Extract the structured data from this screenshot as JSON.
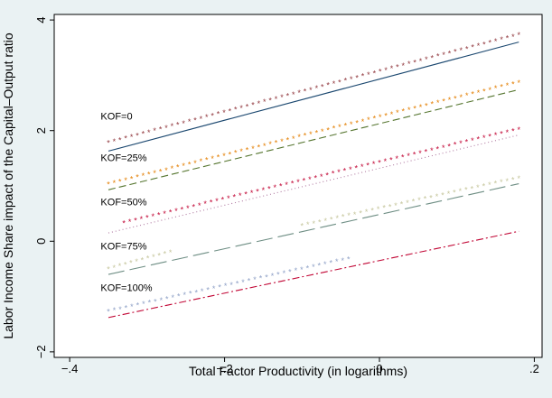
{
  "chart_data": {
    "type": "line",
    "title": "",
    "xlabel": "Total Factor Productivity (in logarithms)",
    "ylabel": "Labor Income Share impact of the Capital–Output ratio",
    "xlim": [
      -0.42,
      0.21
    ],
    "ylim": [
      -2.1,
      4.1
    ],
    "x_ticks": [
      {
        "value": -0.4,
        "label": "−.4"
      },
      {
        "value": -0.2,
        "label": "−.2"
      },
      {
        "value": 0,
        "label": "0"
      },
      {
        "value": 0.2,
        "label": ".2"
      }
    ],
    "y_ticks": [
      {
        "value": -2,
        "label": "−2"
      },
      {
        "value": 0,
        "label": "0"
      },
      {
        "value": 2,
        "label": "2"
      },
      {
        "value": 4,
        "label": "4"
      }
    ],
    "grid": false,
    "legend": "none",
    "series": [
      {
        "label": "KOF=0",
        "line_color": "#1a476f",
        "dash": "",
        "line": [
          [
            -0.35,
            1.63
          ],
          [
            0.18,
            3.6
          ]
        ],
        "star_color": "#90353b",
        "stars": [
          [
            -0.35,
            1.78
          ],
          [
            0.18,
            3.73
          ]
        ],
        "label_at": [
          -0.36,
          2.2
        ]
      },
      {
        "label": "KOF=25%",
        "line_color": "#55752f",
        "dash": "8,4",
        "line": [
          [
            -0.35,
            0.93
          ],
          [
            0.18,
            2.74
          ]
        ],
        "star_color": "#e37e00",
        "stars": [
          [
            -0.35,
            1.03
          ],
          [
            0.18,
            2.87
          ]
        ],
        "label_at": [
          -0.36,
          1.45
        ]
      },
      {
        "label": "KOF=50%",
        "line_color": "#b07aa1",
        "dash": "1,3",
        "line": [
          [
            -0.35,
            0.15
          ],
          [
            0.18,
            1.92
          ]
        ],
        "star_color": "#c10534",
        "stars": [
          [
            -0.33,
            0.33
          ],
          [
            0.18,
            2.02
          ]
        ],
        "label_at": [
          -0.36,
          0.65
        ]
      },
      {
        "label": "KOF=75%",
        "line_color": "#6e8e84",
        "dash": "18,6",
        "line": [
          [
            -0.35,
            -0.6
          ],
          [
            0.18,
            1.04
          ]
        ],
        "star_color": "#c6c69c",
        "segments": [
          [
            [
              -0.35,
              -0.5
            ],
            [
              -0.27,
              -0.2
            ]
          ],
          [
            [
              -0.1,
              0.28
            ],
            [
              0.18,
              1.14
            ]
          ]
        ],
        "label_at": [
          -0.36,
          -0.15
        ]
      },
      {
        "label": "KOF=100%",
        "line_color": "#c10534",
        "dash": "8,3,2,3",
        "line": [
          [
            -0.35,
            -1.38
          ],
          [
            0.18,
            0.18
          ]
        ],
        "star_color": "#8fa1c7",
        "stars": [
          [
            -0.35,
            -1.27
          ],
          [
            -0.04,
            -0.32
          ]
        ],
        "label_at": [
          -0.36,
          -0.9
        ]
      }
    ]
  }
}
